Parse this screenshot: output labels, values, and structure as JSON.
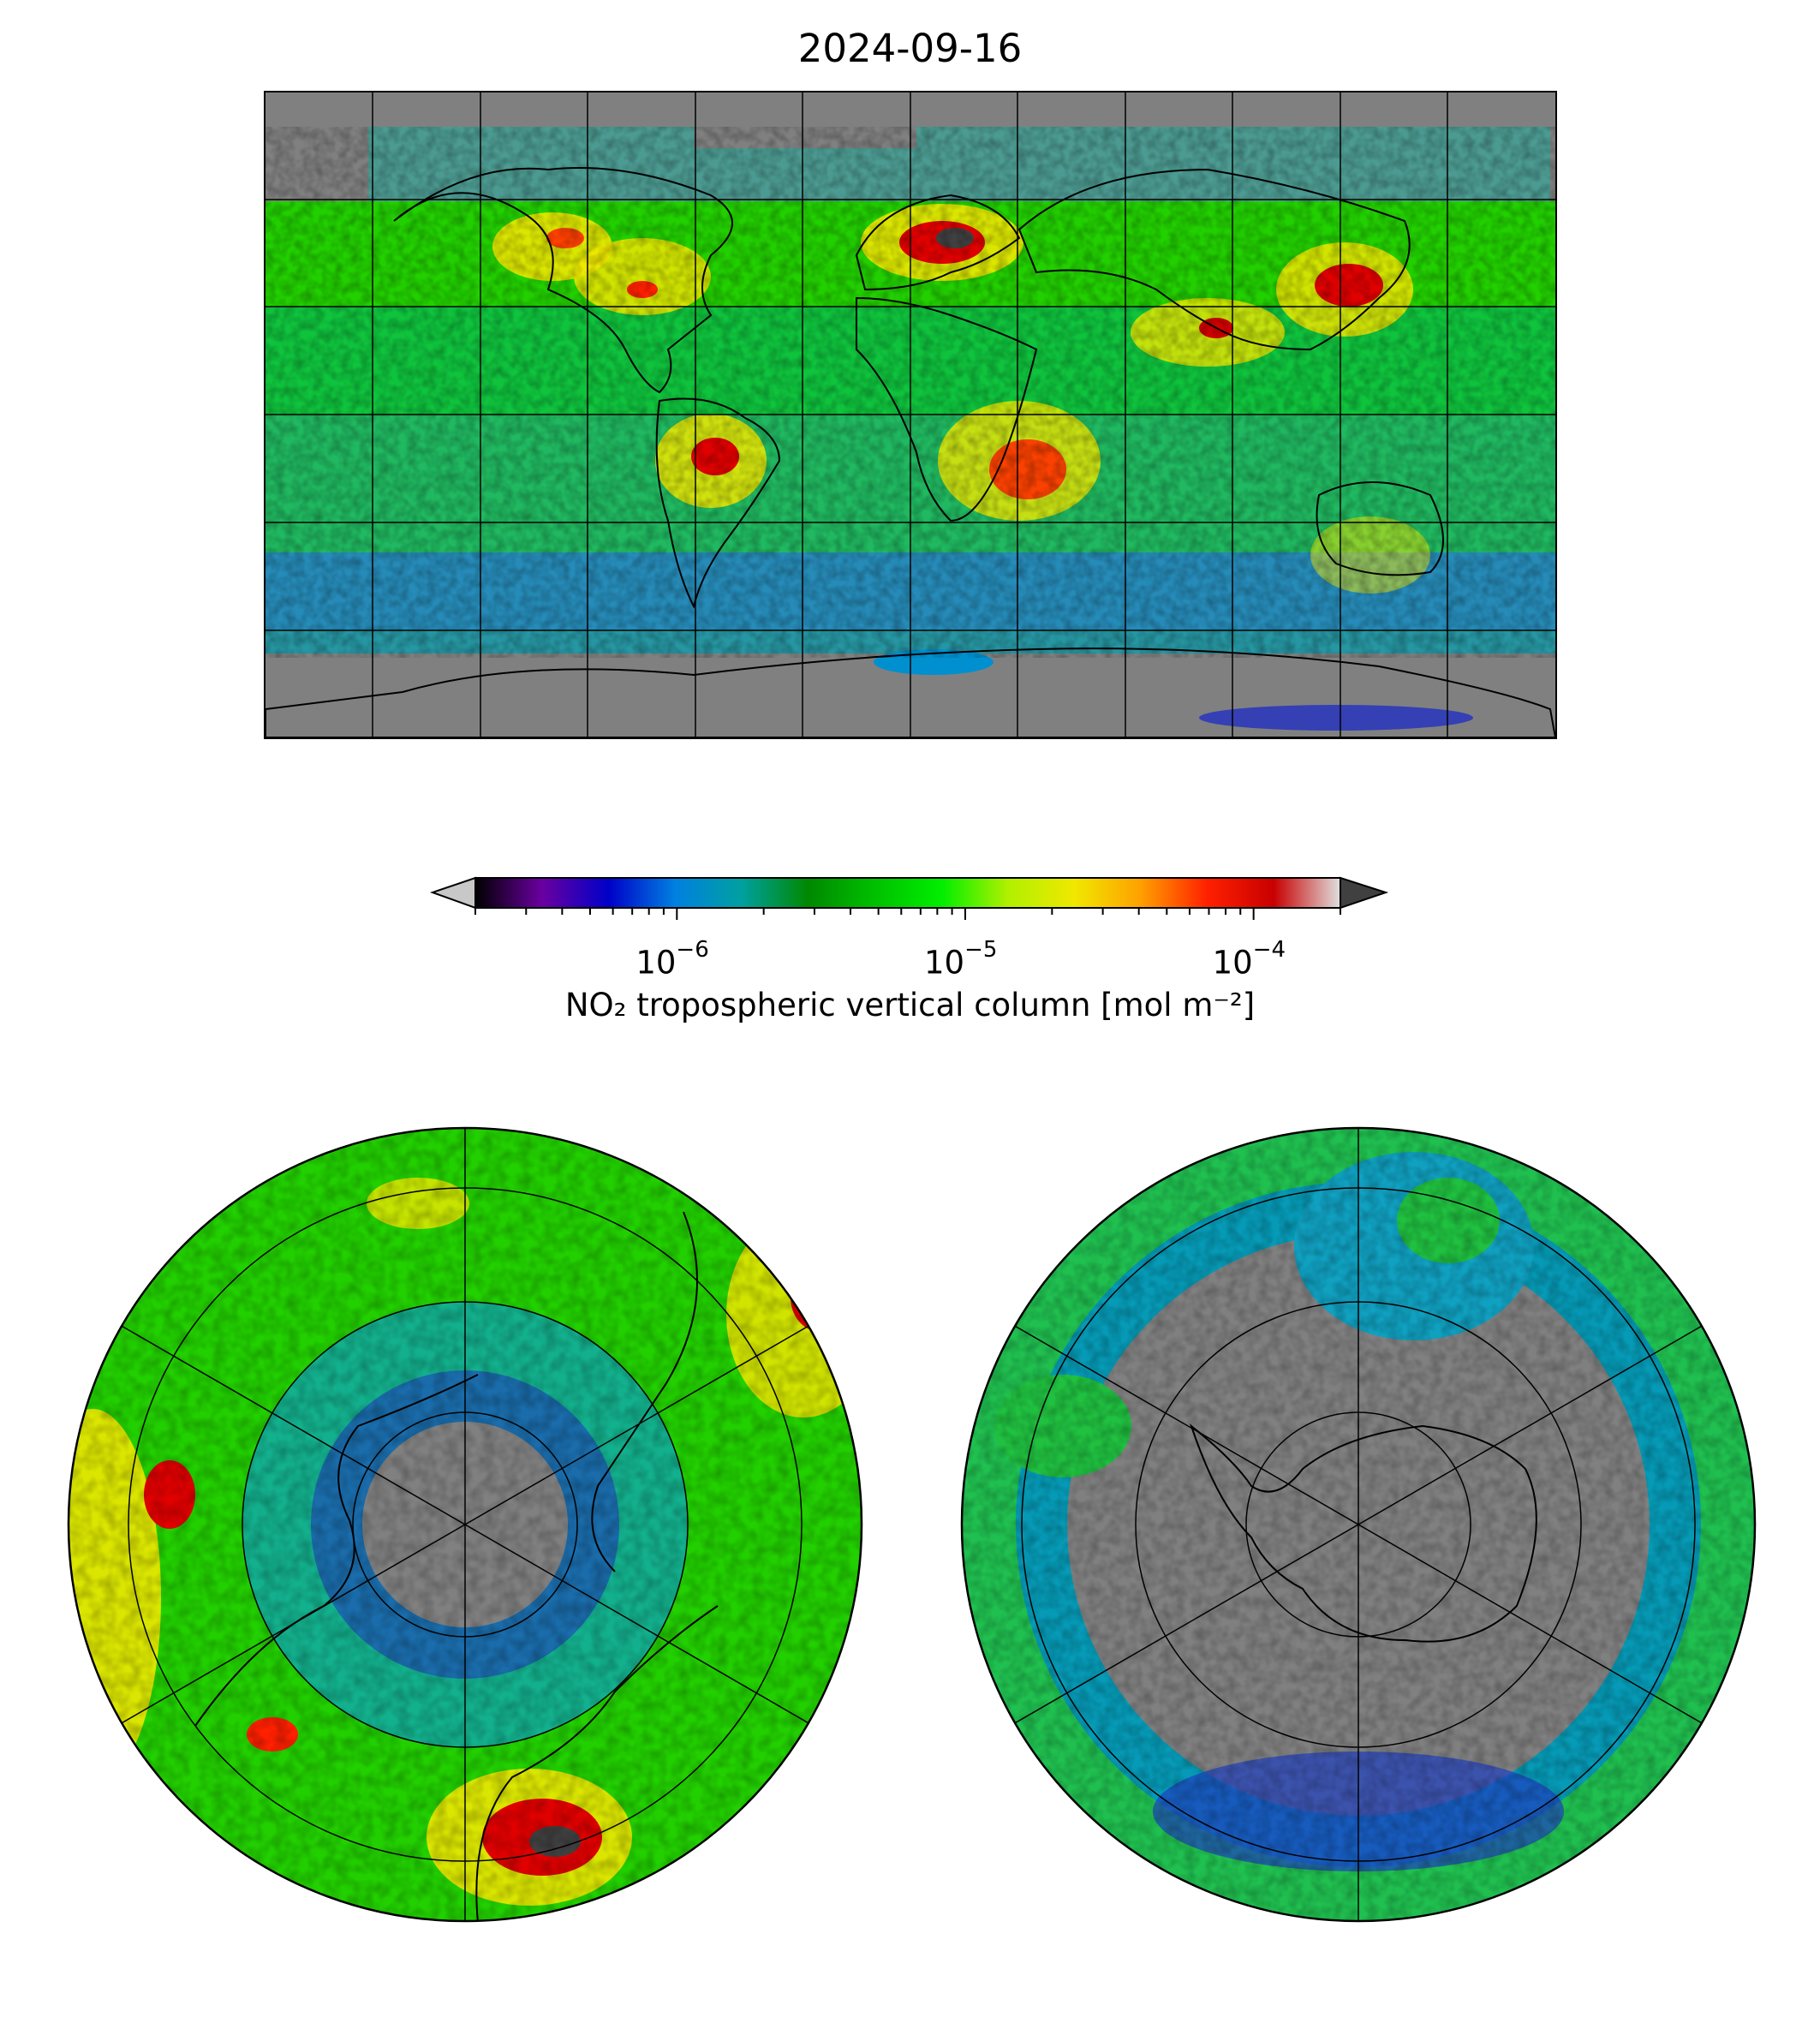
{
  "title": "2024-09-16",
  "colorbar": {
    "label": "NO₂ tropospheric vertical column [mol m⁻²]",
    "scale": "log",
    "vmin": 2e-07,
    "vmax": 0.0002,
    "ticks": [
      {
        "value": 1e-06,
        "base": "10",
        "exponent": "−6"
      },
      {
        "value": 1e-05,
        "base": "10",
        "exponent": "−5"
      },
      {
        "value": 0.0001,
        "base": "10",
        "exponent": "−4"
      }
    ],
    "extend": "both",
    "colors": [
      "#000000",
      "#6a00a0",
      "#0000c8",
      "#0080e0",
      "#00a0a0",
      "#008800",
      "#00c000",
      "#00ee00",
      "#b0f000",
      "#f0e800",
      "#ffa000",
      "#ff2000",
      "#c80000",
      "#e0e0e0"
    ],
    "under_color": "#c8c8c8",
    "over_color": "#404040"
  },
  "maps": {
    "main": {
      "projection": "PlateCarree",
      "gridlines": true,
      "missing_color": "#808080"
    },
    "north": {
      "projection": "NorthPolarStereo",
      "gridlines": true
    },
    "south": {
      "projection": "SouthPolarStereo",
      "gridlines": true
    }
  }
}
